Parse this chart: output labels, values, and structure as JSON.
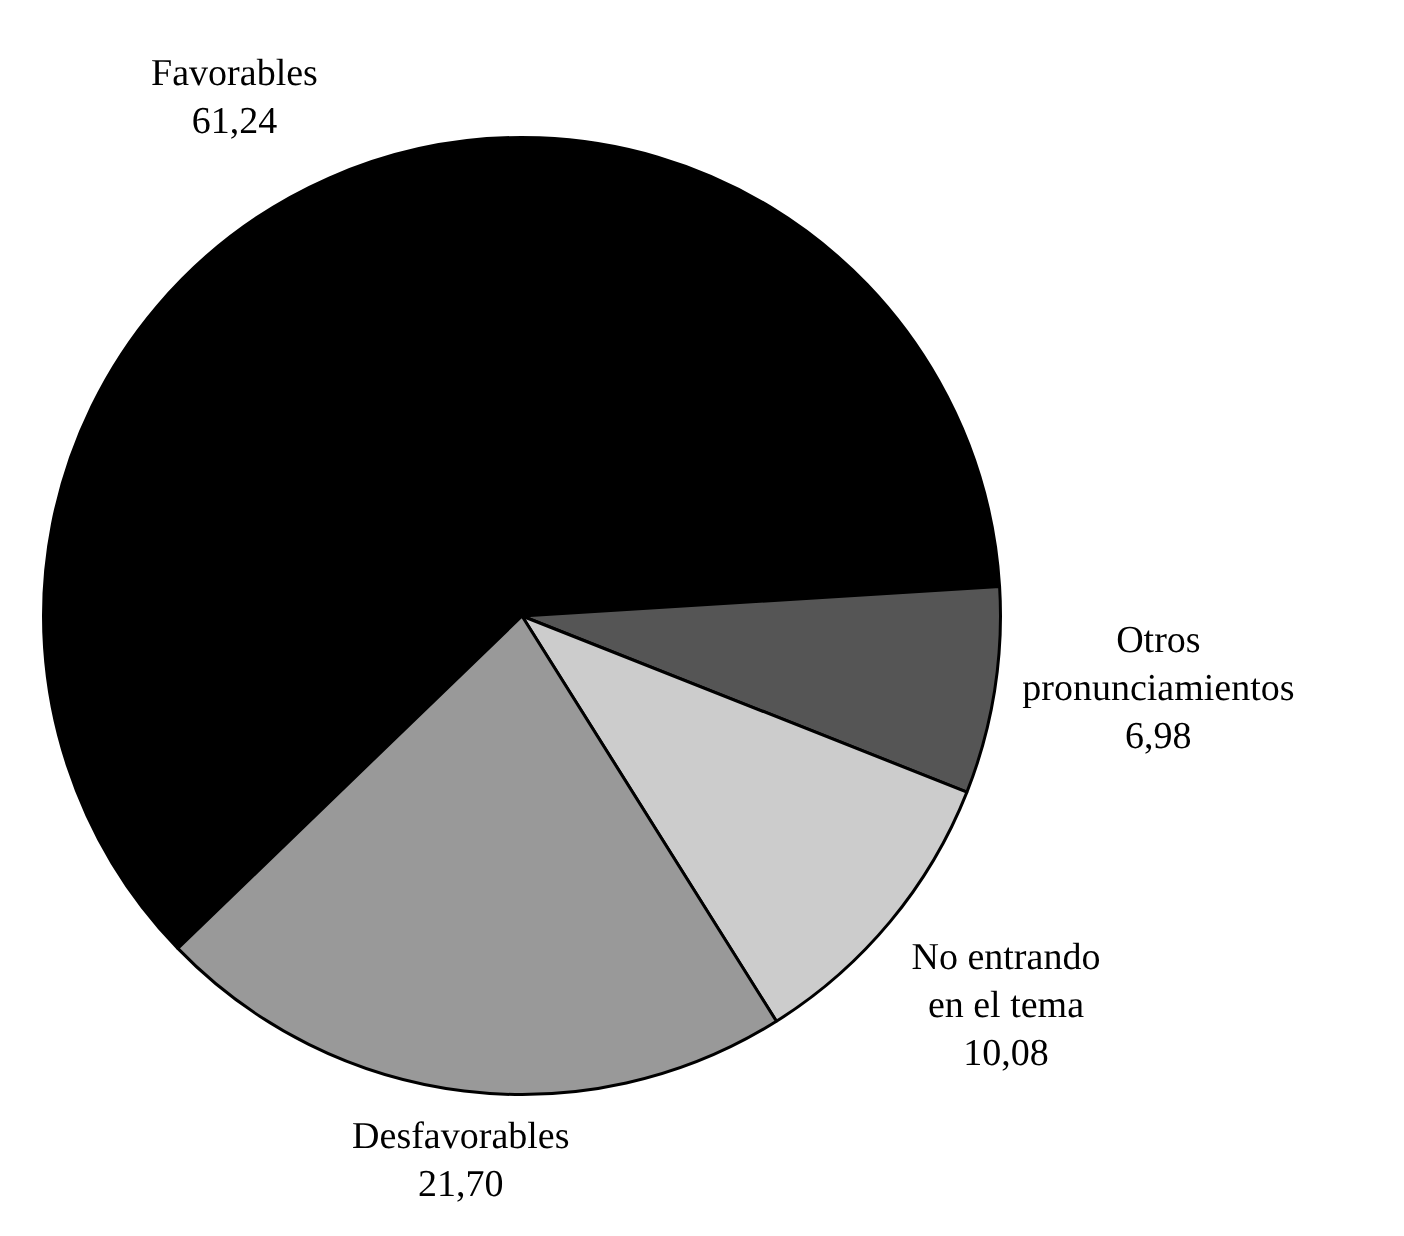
{
  "chart_data": {
    "type": "pie",
    "categories": [
      "Favorables",
      "Otros\npronunciamientos",
      "No entrando\nen el tema",
      "Desfavorables"
    ],
    "values": [
      61.24,
      6.98,
      10.08,
      21.7
    ],
    "value_labels": [
      "61,24",
      "6,98",
      "10,08",
      "21,70"
    ],
    "colors": [
      "#000000",
      "#555555",
      "#cccccc",
      "#999999"
    ],
    "legend": false
  }
}
